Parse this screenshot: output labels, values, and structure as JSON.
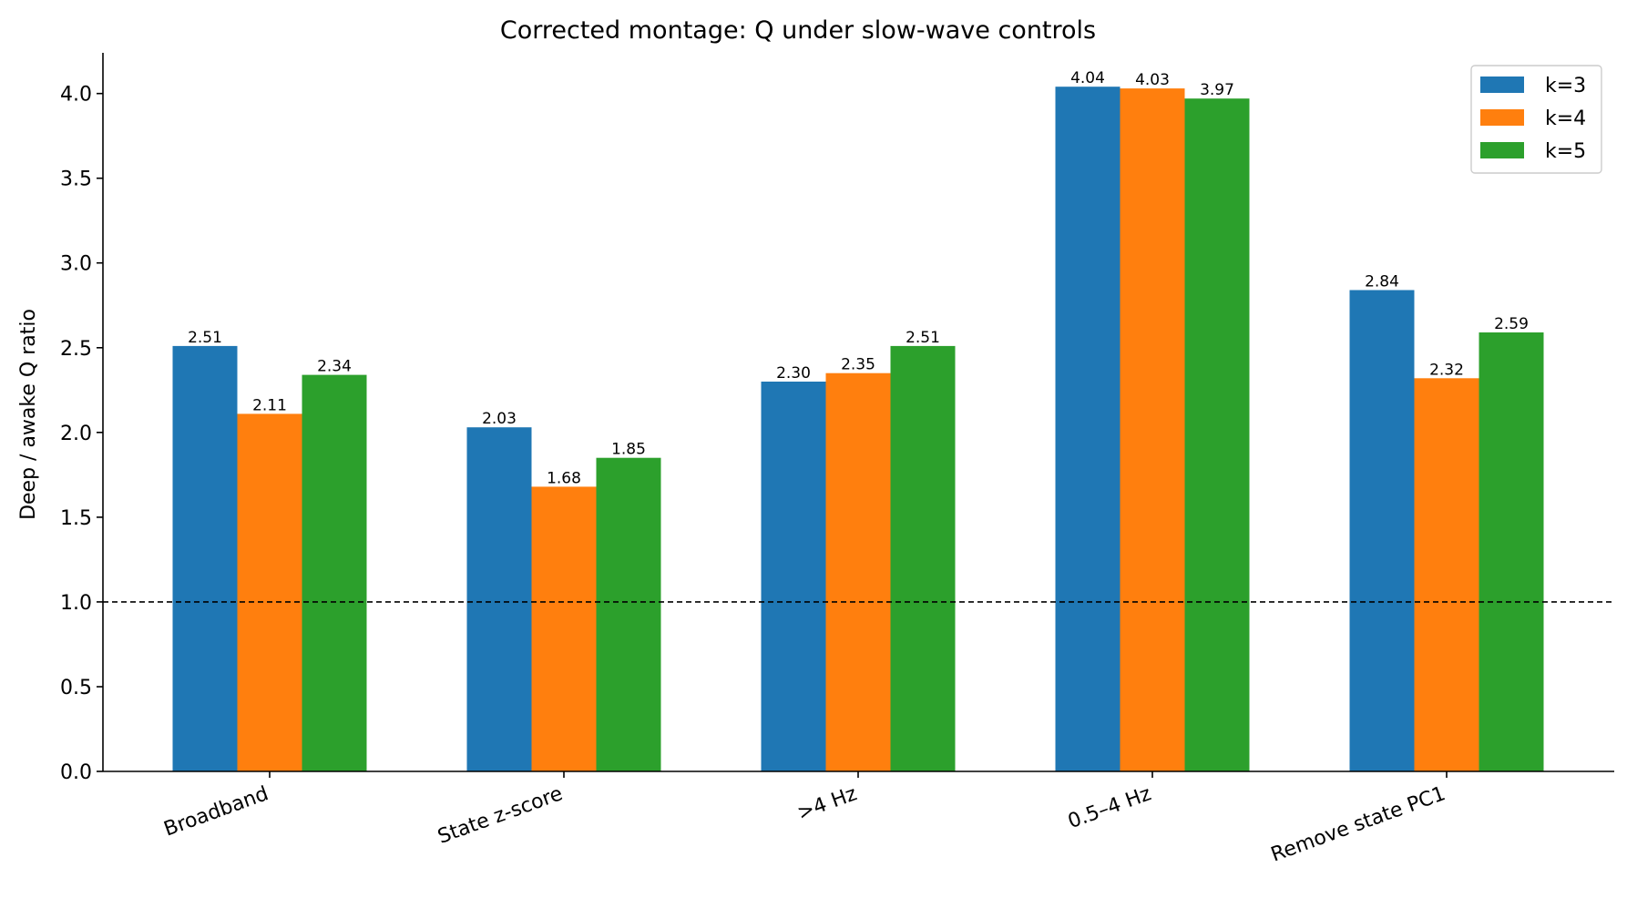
{
  "chart_data": {
    "type": "bar",
    "title": "Corrected montage: Q under slow-wave controls",
    "xlabel": "",
    "ylabel": "Deep / awake Q ratio",
    "ylim": [
      0,
      4.24
    ],
    "yticks": [
      "0.0",
      "0.5",
      "1.0",
      "1.5",
      "2.0",
      "2.5",
      "3.0",
      "3.5",
      "4.0"
    ],
    "categories": [
      "Broadband",
      "State z-score",
      ">4 Hz",
      "0.5–4 Hz",
      "Remove state PC1"
    ],
    "series": [
      {
        "name": "k=3",
        "color": "#1f77b4",
        "values": [
          2.51,
          2.03,
          2.3,
          4.04,
          2.84
        ]
      },
      {
        "name": "k=4",
        "color": "#ff7f0e",
        "values": [
          2.11,
          1.68,
          2.35,
          4.03,
          2.32
        ]
      },
      {
        "name": "k=5",
        "color": "#2ca02c",
        "values": [
          2.34,
          1.85,
          2.51,
          3.97,
          2.59
        ]
      }
    ],
    "reference_line": {
      "y": 1.0,
      "style": "dashed"
    },
    "legend_position": "top-right",
    "grid": false
  }
}
